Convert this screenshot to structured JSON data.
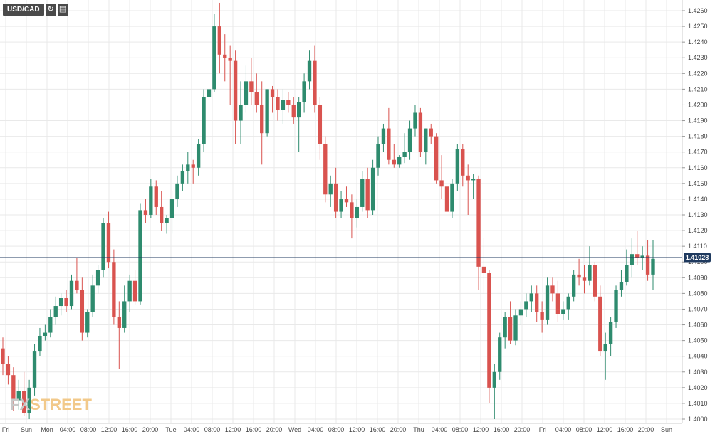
{
  "toolbar": {
    "symbol": "USD/CAD",
    "refresh_icon": "refresh-icon",
    "calendar_icon": "calendar-icon"
  },
  "watermark": {
    "part1": "FX",
    "part2": "STREET"
  },
  "colors": {
    "up": "#2e8b6e",
    "down": "#d9534f",
    "price_line": "#1f3a5f",
    "grid": "#e9e9e9"
  },
  "chart_data": {
    "type": "candlestick",
    "ylim": [
      1.4,
      1.4265
    ],
    "y_ticks": [
      "1.4260",
      "1.4250",
      "1.4240",
      "1.4230",
      "1.4220",
      "1.4210",
      "1.4200",
      "1.4190",
      "1.4180",
      "1.4170",
      "1.4160",
      "1.4150",
      "1.4140",
      "1.4130",
      "1.4120",
      "1.4110",
      "1.4100",
      "1.4090",
      "1.4080",
      "1.4070",
      "1.4060",
      "1.4050",
      "1.4040",
      "1.4030",
      "1.4020",
      "1.4010",
      "1.4000"
    ],
    "x_ticks": [
      "Fri",
      "Sun",
      "Mon",
      "04:00",
      "08:00",
      "12:00",
      "16:00",
      "20:00",
      "Tue",
      "04:00",
      "08:00",
      "12:00",
      "16:00",
      "20:00",
      "Wed",
      "04:00",
      "08:00",
      "12:00",
      "16:00",
      "20:00",
      "Thu",
      "04:00",
      "08:00",
      "12:00",
      "16:00",
      "20:00",
      "Fri",
      "04:00",
      "08:00",
      "12:00",
      "16:00",
      "20:00",
      "Sun"
    ],
    "current_price": "1.41028",
    "current_value": 1.41028,
    "candles": [
      [
        1.4045,
        1.4052,
        1.4028,
        1.4035
      ],
      [
        1.4035,
        1.404,
        1.4022,
        1.4028
      ],
      [
        1.4028,
        1.4033,
        1.4005,
        1.4012
      ],
      [
        1.4012,
        1.4025,
        1.4006,
        1.4018
      ],
      [
        1.4018,
        1.403,
        1.4002,
        1.4004
      ],
      [
        1.4004,
        1.4025,
        1.4,
        1.402
      ],
      [
        1.402,
        1.4048,
        1.4015,
        1.4043
      ],
      [
        1.4043,
        1.4058,
        1.404,
        1.4053
      ],
      [
        1.4053,
        1.406,
        1.405,
        1.4055
      ],
      [
        1.4055,
        1.407,
        1.4052,
        1.4065
      ],
      [
        1.4065,
        1.4078,
        1.406,
        1.4072
      ],
      [
        1.4072,
        1.408,
        1.4066,
        1.4077
      ],
      [
        1.4077,
        1.4082,
        1.4068,
        1.4072
      ],
      [
        1.4072,
        1.4092,
        1.407,
        1.4088
      ],
      [
        1.4088,
        1.4103,
        1.408,
        1.4082
      ],
      [
        1.4082,
        1.409,
        1.405,
        1.4055
      ],
      [
        1.4055,
        1.407,
        1.4052,
        1.4068
      ],
      [
        1.4068,
        1.4092,
        1.4065,
        1.4085
      ],
      [
        1.4085,
        1.4098,
        1.408,
        1.4095
      ],
      [
        1.4095,
        1.4128,
        1.409,
        1.4125
      ],
      [
        1.4125,
        1.4132,
        1.4096,
        1.41
      ],
      [
        1.41,
        1.4108,
        1.406,
        1.4065
      ],
      [
        1.4065,
        1.4075,
        1.4032,
        1.4058
      ],
      [
        1.4058,
        1.4085,
        1.4055,
        1.4075
      ],
      [
        1.4075,
        1.4092,
        1.4068,
        1.4088
      ],
      [
        1.4088,
        1.4095,
        1.4073,
        1.4075
      ],
      [
        1.4075,
        1.4137,
        1.4073,
        1.4133
      ],
      [
        1.4133,
        1.414,
        1.4125,
        1.413
      ],
      [
        1.413,
        1.4153,
        1.4128,
        1.4148
      ],
      [
        1.4148,
        1.4152,
        1.413,
        1.4135
      ],
      [
        1.4135,
        1.4145,
        1.412,
        1.4125
      ],
      [
        1.4125,
        1.413,
        1.4118,
        1.4128
      ],
      [
        1.4128,
        1.4145,
        1.4118,
        1.414
      ],
      [
        1.414,
        1.4155,
        1.4135,
        1.415
      ],
      [
        1.415,
        1.4162,
        1.4145,
        1.4158
      ],
      [
        1.4158,
        1.417,
        1.415,
        1.4162
      ],
      [
        1.4162,
        1.4165,
        1.415,
        1.416
      ],
      [
        1.416,
        1.4178,
        1.4155,
        1.4175
      ],
      [
        1.4175,
        1.421,
        1.417,
        1.4205
      ],
      [
        1.4205,
        1.4225,
        1.42,
        1.421
      ],
      [
        1.421,
        1.4258,
        1.4208,
        1.425
      ],
      [
        1.425,
        1.4265,
        1.422,
        1.4232
      ],
      [
        1.4232,
        1.4245,
        1.4215,
        1.423
      ],
      [
        1.423,
        1.4238,
        1.42,
        1.4228
      ],
      [
        1.4228,
        1.4235,
        1.4175,
        1.419
      ],
      [
        1.419,
        1.4215,
        1.4175,
        1.42
      ],
      [
        1.42,
        1.4225,
        1.4195,
        1.4215
      ],
      [
        1.4215,
        1.423,
        1.42,
        1.4208
      ],
      [
        1.4208,
        1.422,
        1.4195,
        1.42
      ],
      [
        1.42,
        1.4215,
        1.4162,
        1.4182
      ],
      [
        1.4182,
        1.421,
        1.418,
        1.421
      ],
      [
        1.421,
        1.4212,
        1.4195,
        1.4205
      ],
      [
        1.4205,
        1.421,
        1.419,
        1.4197
      ],
      [
        1.4197,
        1.421,
        1.4188,
        1.4203
      ],
      [
        1.4203,
        1.4208,
        1.4195,
        1.42
      ],
      [
        1.42,
        1.4205,
        1.4188,
        1.4192
      ],
      [
        1.4192,
        1.4205,
        1.417,
        1.4202
      ],
      [
        1.4202,
        1.422,
        1.4195,
        1.4215
      ],
      [
        1.4215,
        1.4235,
        1.421,
        1.4228
      ],
      [
        1.4228,
        1.4238,
        1.4195,
        1.42
      ],
      [
        1.42,
        1.4205,
        1.4165,
        1.4175
      ],
      [
        1.4175,
        1.418,
        1.4138,
        1.4143
      ],
      [
        1.4143,
        1.4155,
        1.4135,
        1.415
      ],
      [
        1.415,
        1.416,
        1.4128,
        1.4132
      ],
      [
        1.4132,
        1.4145,
        1.4128,
        1.414
      ],
      [
        1.414,
        1.4148,
        1.4135,
        1.4138
      ],
      [
        1.4138,
        1.4143,
        1.4115,
        1.4128
      ],
      [
        1.4128,
        1.414,
        1.4122,
        1.4135
      ],
      [
        1.4135,
        1.4158,
        1.4132,
        1.4153
      ],
      [
        1.4153,
        1.416,
        1.4128,
        1.4133
      ],
      [
        1.4133,
        1.4165,
        1.413,
        1.416
      ],
      [
        1.416,
        1.418,
        1.4155,
        1.4175
      ],
      [
        1.4175,
        1.4188,
        1.417,
        1.4185
      ],
      [
        1.4185,
        1.4198,
        1.4162,
        1.4165
      ],
      [
        1.4165,
        1.4175,
        1.416,
        1.4162
      ],
      [
        1.4162,
        1.4168,
        1.416,
        1.4167
      ],
      [
        1.4167,
        1.4182,
        1.4163,
        1.417
      ],
      [
        1.417,
        1.419,
        1.4165,
        1.4185
      ],
      [
        1.4185,
        1.42,
        1.418,
        1.4195
      ],
      [
        1.4195,
        1.4198,
        1.4167,
        1.417
      ],
      [
        1.417,
        1.4185,
        1.4162,
        1.4185
      ],
      [
        1.4185,
        1.4188,
        1.4175,
        1.418
      ],
      [
        1.418,
        1.4182,
        1.415,
        1.4152
      ],
      [
        1.4152,
        1.4168,
        1.414,
        1.4148
      ],
      [
        1.4148,
        1.415,
        1.4118,
        1.4132
      ],
      [
        1.4132,
        1.4153,
        1.4128,
        1.415
      ],
      [
        1.415,
        1.4175,
        1.4145,
        1.4172
      ],
      [
        1.4172,
        1.4175,
        1.4148,
        1.4155
      ],
      [
        1.4155,
        1.4162,
        1.413,
        1.4152
      ],
      [
        1.4152,
        1.4156,
        1.414,
        1.4153
      ],
      [
        1.4153,
        1.4155,
        1.4082,
        1.4097
      ],
      [
        1.4097,
        1.4115,
        1.408,
        1.4093
      ],
      [
        1.4093,
        1.4095,
        1.401,
        1.402
      ],
      [
        1.402,
        1.4035,
        1.4,
        1.403
      ],
      [
        1.403,
        1.4055,
        1.4025,
        1.4052
      ],
      [
        1.4052,
        1.4068,
        1.4045,
        1.4065
      ],
      [
        1.4065,
        1.4075,
        1.4048,
        1.405
      ],
      [
        1.405,
        1.407,
        1.4047,
        1.4066
      ],
      [
        1.4066,
        1.4075,
        1.406,
        1.407
      ],
      [
        1.407,
        1.408,
        1.4065,
        1.4075
      ],
      [
        1.4075,
        1.4085,
        1.4068,
        1.408
      ],
      [
        1.408,
        1.4085,
        1.4062,
        1.4068
      ],
      [
        1.4068,
        1.4075,
        1.4055,
        1.4063
      ],
      [
        1.4063,
        1.409,
        1.406,
        1.4085
      ],
      [
        1.4085,
        1.409,
        1.4075,
        1.408
      ],
      [
        1.408,
        1.4088,
        1.4062,
        1.4067
      ],
      [
        1.4067,
        1.4075,
        1.4063,
        1.407
      ],
      [
        1.407,
        1.408,
        1.4063,
        1.4078
      ],
      [
        1.4078,
        1.4095,
        1.4075,
        1.4092
      ],
      [
        1.4092,
        1.4102,
        1.4085,
        1.409
      ],
      [
        1.409,
        1.4098,
        1.408,
        1.4088
      ],
      [
        1.4088,
        1.411,
        1.4085,
        1.4098
      ],
      [
        1.4098,
        1.41,
        1.4075,
        1.4078
      ],
      [
        1.4078,
        1.4085,
        1.404,
        1.4043
      ],
      [
        1.4043,
        1.4055,
        1.4025,
        1.4048
      ],
      [
        1.4048,
        1.4065,
        1.404,
        1.4062
      ],
      [
        1.4062,
        1.4085,
        1.4058,
        1.4082
      ],
      [
        1.4082,
        1.4095,
        1.4078,
        1.4087
      ],
      [
        1.4087,
        1.4108,
        1.4085,
        1.4098
      ],
      [
        1.4098,
        1.4115,
        1.409,
        1.4105
      ],
      [
        1.4105,
        1.412,
        1.4098,
        1.4103
      ],
      [
        1.4103,
        1.411,
        1.4095,
        1.4104
      ],
      [
        1.4104,
        1.4114,
        1.4088,
        1.4092
      ],
      [
        1.4092,
        1.4114,
        1.4082,
        1.4102
      ]
    ]
  }
}
